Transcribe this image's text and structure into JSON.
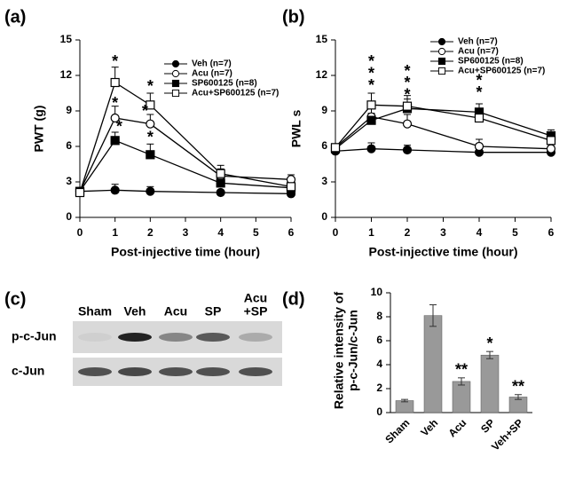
{
  "chart_data": [
    {
      "type": "line",
      "panel": "(a)",
      "xlabel": "Post-injective time (hour)",
      "ylabel": "PWT (g)",
      "x": [
        0,
        1,
        2,
        4,
        6
      ],
      "xlim": [
        0,
        6
      ],
      "xticks": [
        0,
        1,
        2,
        3,
        4,
        5,
        6
      ],
      "ylim": [
        0,
        15
      ],
      "yticks": [
        0,
        3,
        6,
        9,
        12,
        15
      ],
      "series": [
        {
          "name": "Veh (n=7)",
          "color": "#000000",
          "marker": "circle",
          "filled": true,
          "values": [
            2.2,
            2.3,
            2.2,
            2.1,
            2.0
          ],
          "errors": [
            0.2,
            0.5,
            0.4,
            0.2,
            0.2
          ]
        },
        {
          "name": "Acu (n=7)",
          "color": "#000000",
          "marker": "circle",
          "filled": false,
          "values": [
            2.2,
            8.4,
            7.9,
            3.5,
            3.2
          ],
          "errors": [
            0.2,
            1.0,
            0.8,
            0.6,
            0.4
          ]
        },
        {
          "name": "SP600125 (n=8)",
          "color": "#000000",
          "marker": "square",
          "filled": true,
          "values": [
            2.2,
            6.5,
            5.3,
            2.9,
            2.5
          ],
          "errors": [
            0.2,
            0.7,
            0.9,
            0.5,
            0.3
          ]
        },
        {
          "name": "Acu+SP600125 (n=7)",
          "color": "#000000",
          "marker": "square",
          "filled": false,
          "values": [
            2.1,
            11.4,
            9.5,
            3.7,
            2.6
          ],
          "errors": [
            0.2,
            1.3,
            1.0,
            0.7,
            0.5
          ]
        }
      ],
      "annotations": [
        {
          "text": "*",
          "x": 1,
          "y": 13.4
        },
        {
          "text": "*",
          "x": 1,
          "y": 9.9
        },
        {
          "text": "*",
          "x": 1.12,
          "y": 7.9
        },
        {
          "text": "*",
          "x": 2,
          "y": 11.3
        },
        {
          "text": "*",
          "x": 1.85,
          "y": 9.2
        },
        {
          "text": "*",
          "x": 2,
          "y": 7.0
        }
      ]
    },
    {
      "type": "line",
      "panel": "(b)",
      "xlabel": "Post-injective time (hour)",
      "ylabel": "PWL s",
      "x": [
        0,
        1,
        2,
        4,
        6
      ],
      "xlim": [
        0,
        6
      ],
      "xticks": [
        0,
        1,
        2,
        3,
        4,
        5,
        6
      ],
      "ylim": [
        0,
        15
      ],
      "yticks": [
        0,
        3,
        6,
        9,
        12,
        15
      ],
      "series": [
        {
          "name": "Veh (n=7)",
          "color": "#000000",
          "marker": "circle",
          "filled": true,
          "values": [
            5.6,
            5.8,
            5.7,
            5.5,
            5.5
          ],
          "errors": [
            0.3,
            0.5,
            0.4,
            0.3,
            0.3
          ]
        },
        {
          "name": "Acu (n=7)",
          "color": "#000000",
          "marker": "circle",
          "filled": false,
          "values": [
            5.9,
            8.5,
            7.9,
            6.0,
            5.8
          ],
          "errors": [
            0.3,
            0.7,
            0.8,
            0.6,
            0.4
          ]
        },
        {
          "name": "SP600125 (n=8)",
          "color": "#000000",
          "marker": "square",
          "filled": true,
          "values": [
            5.8,
            8.2,
            9.2,
            8.9,
            6.9
          ],
          "errors": [
            0.3,
            0.6,
            0.8,
            0.7,
            0.5
          ]
        },
        {
          "name": "Acu+SP600125 (n=7)",
          "color": "#000000",
          "marker": "square",
          "filled": false,
          "values": [
            5.9,
            9.5,
            9.4,
            8.4,
            6.5
          ],
          "errors": [
            0.3,
            1.0,
            0.9,
            0.7,
            0.5
          ]
        }
      ],
      "annotations": [
        {
          "text": "*",
          "x": 1,
          "y": 13.4
        },
        {
          "text": "*",
          "x": 1,
          "y": 12.4
        },
        {
          "text": "*",
          "x": 1,
          "y": 11.4
        },
        {
          "text": "*",
          "x": 2,
          "y": 12.6
        },
        {
          "text": "*",
          "x": 2,
          "y": 11.6
        },
        {
          "text": "*",
          "x": 2,
          "y": 10.6
        },
        {
          "text": "*",
          "x": 4,
          "y": 11.8
        },
        {
          "text": "*",
          "x": 4,
          "y": 10.8
        }
      ]
    },
    {
      "type": "blot",
      "panel": "(c)",
      "lanes": [
        [
          "Sham"
        ],
        [
          "Veh"
        ],
        [
          "Acu"
        ],
        [
          "SP"
        ],
        [
          "Acu",
          "+SP"
        ]
      ],
      "rows": [
        {
          "label": "p-c-Jun",
          "intensity": [
            0.05,
            1.0,
            0.45,
            0.7,
            0.25
          ]
        },
        {
          "label": "c-Jun",
          "intensity": [
            0.75,
            0.8,
            0.75,
            0.75,
            0.75
          ]
        }
      ]
    },
    {
      "type": "bar",
      "panel": "(d)",
      "ylabel": [
        "Relative intensity of",
        "p-c-Jun/c-Jun"
      ],
      "categories": [
        "Sham",
        "Veh",
        "Acu",
        "SP",
        "Veh+SP"
      ],
      "values": [
        1.0,
        8.1,
        2.6,
        4.8,
        1.3
      ],
      "errors": [
        0.1,
        0.9,
        0.3,
        0.3,
        0.2
      ],
      "sig": [
        null,
        null,
        "**",
        "*",
        "**"
      ],
      "color": "#999999",
      "ylim": [
        0,
        10
      ],
      "yticks": [
        0,
        2,
        4,
        6,
        8,
        10
      ]
    }
  ]
}
